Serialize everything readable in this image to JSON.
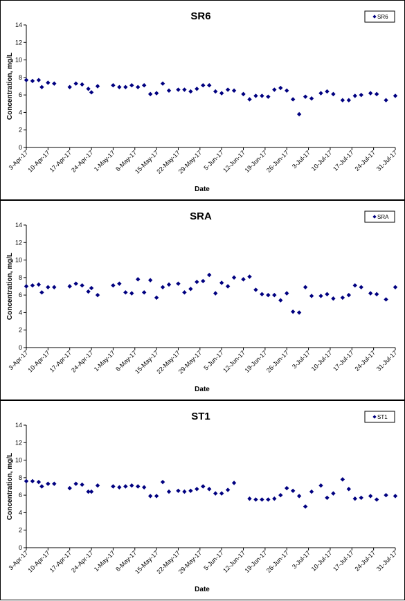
{
  "marker_color": "#000080",
  "charts": [
    {
      "title": "SR6",
      "xlabel": "Date",
      "ylabel": "Concentration, mg/L",
      "legend": "SR6",
      "legend_position": "top-right",
      "ylim": [
        0,
        14
      ],
      "yticks": [
        0,
        2,
        4,
        6,
        8,
        10,
        12,
        14
      ],
      "xlim": [
        "2017-04-03",
        "2017-07-31"
      ],
      "xtick_labels": [
        "3-Apr-17",
        "10-Apr-17",
        "17-Apr-17",
        "24-Apr-17",
        "1-May-17",
        "8-May-17",
        "15-May-17",
        "22-May-17",
        "29-May-17",
        "5-Jun-17",
        "12-Jun-17",
        "19-Jun-17",
        "26-Jun-17",
        "3-Jul-17",
        "10-Jul-17",
        "17-Jul-17",
        "24-Jul-17",
        "31-Jul-17"
      ],
      "chart_data": {
        "type": "scatter",
        "x": [
          "2017-04-03",
          "2017-04-05",
          "2017-04-07",
          "2017-04-08",
          "2017-04-10",
          "2017-04-12",
          "2017-04-17",
          "2017-04-19",
          "2017-04-21",
          "2017-04-23",
          "2017-04-24",
          "2017-04-26",
          "2017-05-01",
          "2017-05-03",
          "2017-05-05",
          "2017-05-07",
          "2017-05-09",
          "2017-05-11",
          "2017-05-13",
          "2017-05-15",
          "2017-05-17",
          "2017-05-19",
          "2017-05-22",
          "2017-05-24",
          "2017-05-26",
          "2017-05-28",
          "2017-05-30",
          "2017-06-01",
          "2017-06-03",
          "2017-06-05",
          "2017-06-07",
          "2017-06-09",
          "2017-06-12",
          "2017-06-14",
          "2017-06-16",
          "2017-06-18",
          "2017-06-20",
          "2017-06-22",
          "2017-06-24",
          "2017-06-26",
          "2017-06-28",
          "2017-06-30",
          "2017-07-02",
          "2017-07-04",
          "2017-07-07",
          "2017-07-09",
          "2017-07-11",
          "2017-07-14",
          "2017-07-16",
          "2017-07-18",
          "2017-07-20",
          "2017-07-23",
          "2017-07-25",
          "2017-07-28",
          "2017-07-31"
        ],
        "y": [
          7.7,
          7.6,
          7.7,
          6.9,
          7.4,
          7.3,
          6.9,
          7.3,
          7.2,
          6.7,
          6.3,
          7.0,
          7.1,
          6.9,
          6.9,
          7.1,
          6.9,
          7.1,
          6.1,
          6.2,
          7.3,
          6.5,
          6.6,
          6.6,
          6.4,
          6.7,
          7.1,
          7.1,
          6.4,
          6.2,
          6.6,
          6.5,
          6.1,
          5.5,
          5.9,
          5.9,
          5.8,
          6.6,
          6.8,
          6.5,
          5.5,
          3.8,
          5.8,
          5.6,
          6.2,
          6.4,
          6.1,
          5.4,
          5.4,
          5.9,
          6.0,
          6.2,
          6.1,
          5.4,
          5.9
        ]
      }
    },
    {
      "title": "SRA",
      "xlabel": "Date",
      "ylabel": "Concentration, mg/L",
      "legend": "SRA",
      "legend_position": "top-right",
      "ylim": [
        0,
        14
      ],
      "yticks": [
        0,
        2,
        4,
        6,
        8,
        10,
        12,
        14
      ],
      "xlim": [
        "2017-04-03",
        "2017-07-31"
      ],
      "xtick_labels": [
        "3-Apr-17",
        "10-Apr-17",
        "17-Apr-17",
        "24-Apr-17",
        "1-May-17",
        "8-May-17",
        "15-May-17",
        "22-May-17",
        "29-May-17",
        "5-Jun-17",
        "12-Jun-17",
        "19-Jun-17",
        "26-Jun-17",
        "3-Jul-17",
        "10-Jul-17",
        "17-Jul-17",
        "24-Jul-17",
        "31-Jul-17"
      ],
      "chart_data": {
        "type": "scatter",
        "x": [
          "2017-04-03",
          "2017-04-05",
          "2017-04-07",
          "2017-04-08",
          "2017-04-10",
          "2017-04-12",
          "2017-04-17",
          "2017-04-19",
          "2017-04-21",
          "2017-04-23",
          "2017-04-24",
          "2017-04-26",
          "2017-05-01",
          "2017-05-03",
          "2017-05-05",
          "2017-05-07",
          "2017-05-09",
          "2017-05-11",
          "2017-05-13",
          "2017-05-15",
          "2017-05-17",
          "2017-05-19",
          "2017-05-22",
          "2017-05-24",
          "2017-05-26",
          "2017-05-28",
          "2017-05-30",
          "2017-06-01",
          "2017-06-03",
          "2017-06-05",
          "2017-06-07",
          "2017-06-09",
          "2017-06-12",
          "2017-06-14",
          "2017-06-16",
          "2017-06-18",
          "2017-06-20",
          "2017-06-22",
          "2017-06-24",
          "2017-06-26",
          "2017-06-28",
          "2017-06-30",
          "2017-07-02",
          "2017-07-04",
          "2017-07-07",
          "2017-07-09",
          "2017-07-11",
          "2017-07-14",
          "2017-07-16",
          "2017-07-18",
          "2017-07-20",
          "2017-07-23",
          "2017-07-25",
          "2017-07-28",
          "2017-07-31"
        ],
        "y": [
          7.0,
          7.1,
          7.2,
          6.3,
          6.9,
          6.9,
          7.0,
          7.3,
          7.1,
          6.4,
          6.8,
          6.0,
          7.1,
          7.3,
          6.3,
          6.2,
          7.8,
          6.3,
          7.7,
          5.7,
          6.9,
          7.2,
          7.3,
          6.3,
          6.7,
          7.5,
          7.6,
          8.3,
          6.2,
          7.4,
          7.0,
          8.0,
          7.8,
          8.1,
          6.6,
          6.1,
          6.0,
          6.0,
          5.4,
          6.2,
          4.1,
          4.0,
          6.9,
          5.9,
          5.9,
          6.1,
          5.6,
          5.7,
          6.0,
          7.1,
          6.9,
          6.2,
          6.1,
          5.5,
          6.9
        ]
      }
    },
    {
      "title": "ST1",
      "xlabel": "Date",
      "ylabel": "Concentration, mg/L",
      "legend": "ST1",
      "legend_position": "top-right",
      "ylim": [
        0,
        14
      ],
      "yticks": [
        0,
        2,
        4,
        6,
        8,
        10,
        12,
        14
      ],
      "xlim": [
        "2017-04-03",
        "2017-07-31"
      ],
      "xtick_labels": [
        "3-Apr-17",
        "10-Apr-17",
        "17-Apr-17",
        "24-Apr-17",
        "1-May-17",
        "8-May-17",
        "15-May-17",
        "22-May-17",
        "29-May-17",
        "5-Jun-17",
        "12-Jun-17",
        "19-Jun-17",
        "26-Jun-17",
        "3-Jul-17",
        "10-Jul-17",
        "17-Jul-17",
        "24-Jul-17",
        "31-Jul-17"
      ],
      "chart_data": {
        "type": "scatter",
        "x": [
          "2017-04-03",
          "2017-04-05",
          "2017-04-07",
          "2017-04-08",
          "2017-04-10",
          "2017-04-12",
          "2017-04-17",
          "2017-04-19",
          "2017-04-21",
          "2017-04-23",
          "2017-04-24",
          "2017-04-26",
          "2017-05-01",
          "2017-05-03",
          "2017-05-05",
          "2017-05-07",
          "2017-05-09",
          "2017-05-11",
          "2017-05-13",
          "2017-05-15",
          "2017-05-17",
          "2017-05-19",
          "2017-05-22",
          "2017-05-24",
          "2017-05-26",
          "2017-05-28",
          "2017-05-30",
          "2017-06-01",
          "2017-06-03",
          "2017-06-05",
          "2017-06-07",
          "2017-06-09",
          "2017-06-14",
          "2017-06-16",
          "2017-06-18",
          "2017-06-20",
          "2017-06-22",
          "2017-06-24",
          "2017-06-26",
          "2017-06-28",
          "2017-06-30",
          "2017-07-02",
          "2017-07-04",
          "2017-07-07",
          "2017-07-09",
          "2017-07-11",
          "2017-07-14",
          "2017-07-16",
          "2017-07-18",
          "2017-07-20",
          "2017-07-23",
          "2017-07-25",
          "2017-07-28",
          "2017-07-31"
        ],
        "y": [
          7.6,
          7.6,
          7.5,
          7.0,
          7.3,
          7.3,
          6.8,
          7.3,
          7.2,
          6.4,
          6.4,
          7.1,
          7.0,
          6.9,
          7.0,
          7.1,
          7.0,
          6.9,
          5.9,
          5.9,
          7.5,
          6.4,
          6.5,
          6.4,
          6.5,
          6.7,
          7.0,
          6.7,
          6.2,
          6.2,
          6.6,
          7.4,
          5.6,
          5.5,
          5.5,
          5.5,
          5.6,
          6.0,
          6.8,
          6.5,
          5.9,
          4.7,
          6.4,
          7.1,
          5.7,
          6.2,
          7.8,
          6.7,
          5.6,
          5.7,
          5.9,
          5.5,
          6.0,
          5.9
        ]
      }
    }
  ]
}
